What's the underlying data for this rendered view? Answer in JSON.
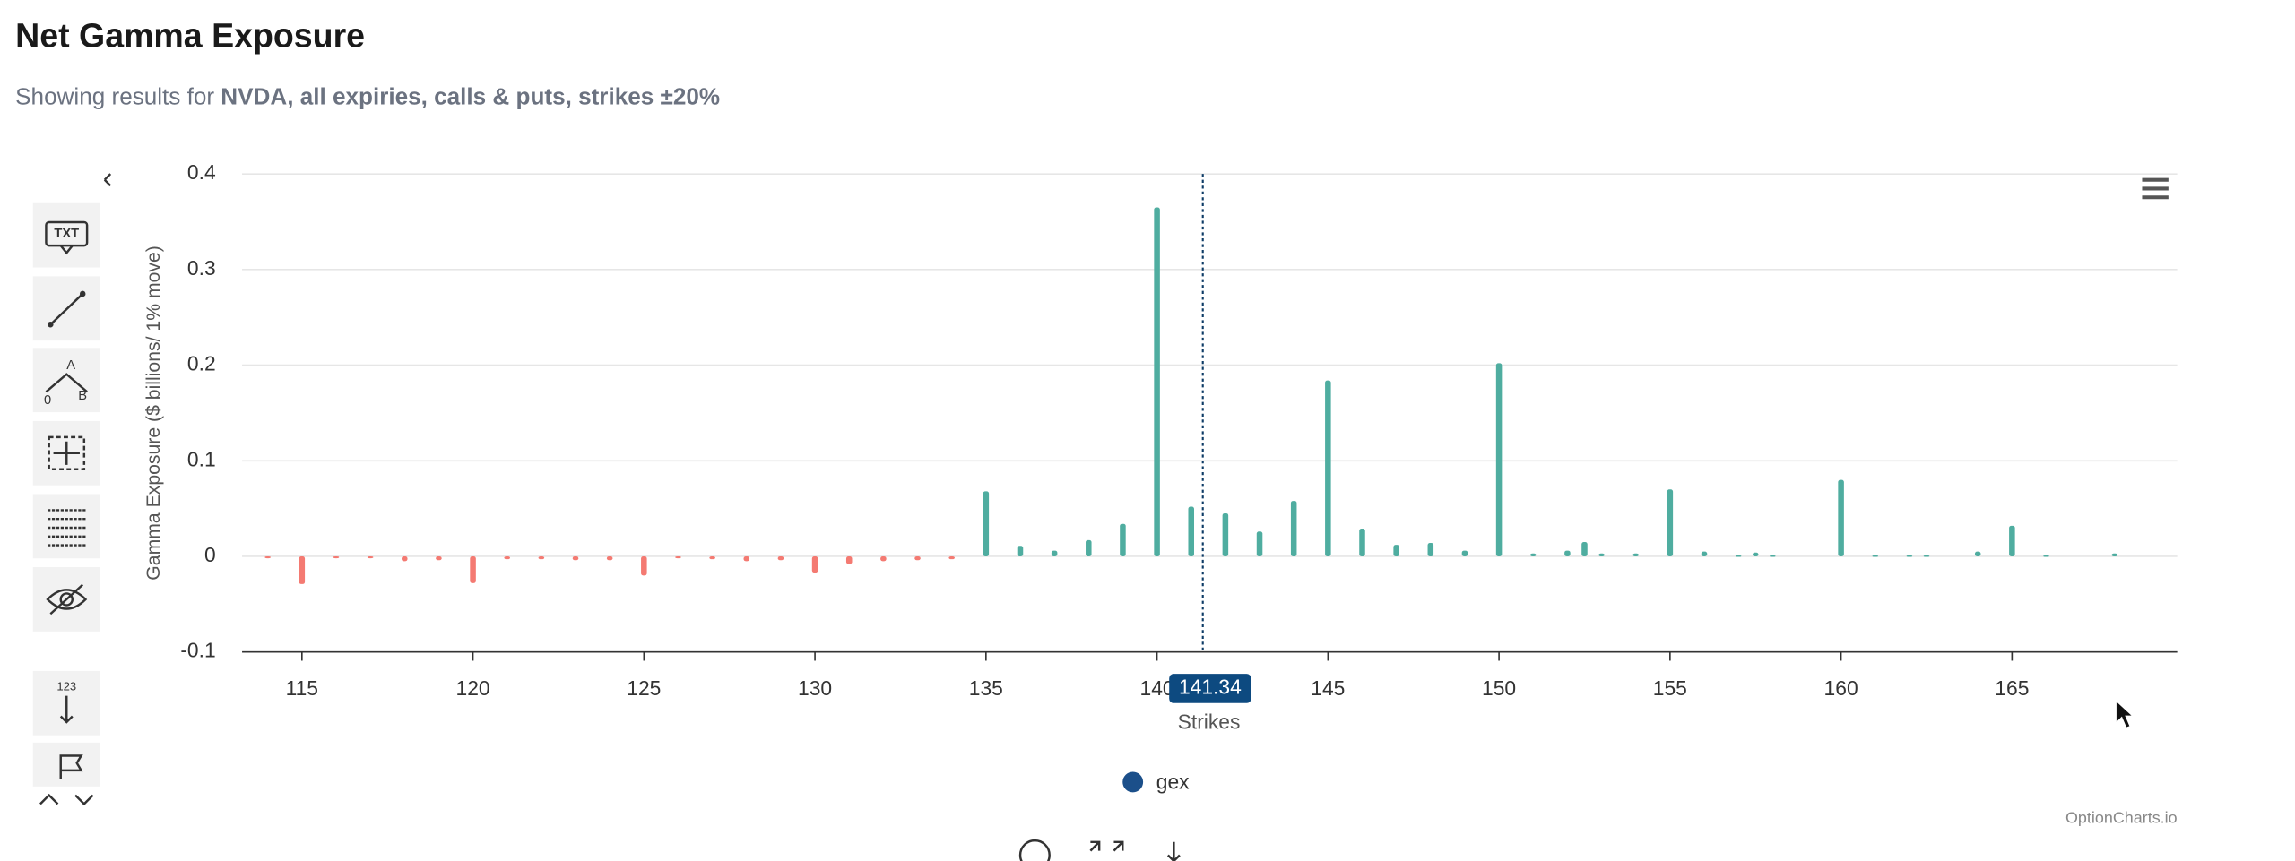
{
  "header": {
    "title": "Net Gamma Exposure",
    "subtitle_prefix": "Showing results for",
    "subtitle_emphasis": "NVDA, all expiries, calls & puts, strikes ±20%"
  },
  "toolbar": {
    "text_tool": "TXT",
    "angle_top": "A",
    "angle_left": "0",
    "angle_right": "B",
    "count_tool": "123"
  },
  "watermark": "OptionCharts.io",
  "chart_data": {
    "type": "bar",
    "x": [
      114,
      115,
      116,
      117,
      118,
      119,
      120,
      121,
      122,
      123,
      124,
      125,
      126,
      127,
      128,
      129,
      130,
      131,
      132,
      133,
      134,
      135,
      136,
      137,
      138,
      139,
      140,
      141,
      142,
      143,
      144,
      145,
      146,
      147,
      148,
      149,
      150,
      151,
      152,
      152.5,
      153,
      154,
      155,
      156,
      157,
      157.5,
      158,
      160,
      161,
      162,
      162.5,
      164,
      165,
      166,
      168
    ],
    "series": [
      {
        "name": "gex",
        "color": "#1b4f8a",
        "positive_color": "#4fada0",
        "negative_color": "#f47a72",
        "values": [
          -0.002,
          -0.029,
          -0.002,
          -0.002,
          -0.005,
          -0.004,
          -0.028,
          -0.003,
          -0.003,
          -0.004,
          -0.004,
          -0.02,
          -0.002,
          -0.003,
          -0.005,
          -0.004,
          -0.017,
          -0.008,
          -0.005,
          -0.004,
          -0.003,
          0.068,
          0.011,
          0.006,
          0.017,
          0.034,
          0.365,
          0.052,
          0.045,
          0.026,
          0.058,
          0.184,
          0.029,
          0.012,
          0.014,
          0.006,
          0.202,
          0.003,
          0.006,
          0.015,
          0.003,
          0.003,
          0.07,
          0.005,
          0.001,
          0.004,
          0.001,
          0.08,
          0.001,
          0.001,
          0.001,
          0.005,
          0.032,
          0.001,
          0.003
        ]
      }
    ],
    "xlim": [
      113.25,
      169.83
    ],
    "ylim": [
      -0.1,
      0.4
    ],
    "xticks": [
      115,
      120,
      125,
      130,
      135,
      140,
      145,
      150,
      155,
      160,
      165
    ],
    "yticks": [
      0.4,
      0.3,
      0.2,
      0.1,
      0,
      -0.1
    ],
    "y_label": "Gamma Exposure ($ billions/ 1% move)",
    "x_label": "Strikes",
    "spot": 141.34,
    "grid": true
  }
}
